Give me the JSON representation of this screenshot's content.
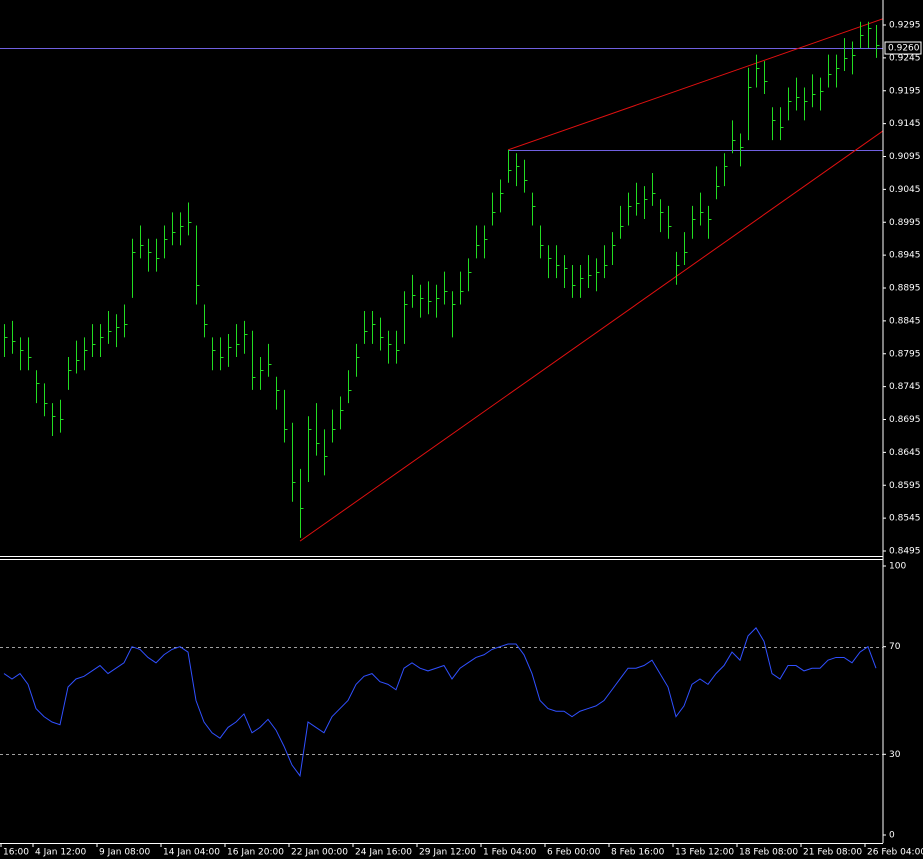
{
  "chart_data": {
    "type": "ohlc",
    "color": "#22dd22",
    "ylim": [
      0.8495,
      0.9295
    ],
    "yticks": [
      0.8495,
      0.8545,
      0.8595,
      0.8645,
      0.8695,
      0.8745,
      0.8795,
      0.8845,
      0.8895,
      0.8945,
      0.8995,
      0.9045,
      0.9095,
      0.9145,
      0.9195,
      0.9245,
      0.9295
    ],
    "high": [
      0.884,
      0.8845,
      0.882,
      0.882,
      0.877,
      0.875,
      0.872,
      0.8725,
      0.879,
      0.8815,
      0.882,
      0.884,
      0.884,
      0.886,
      0.8855,
      0.887,
      0.897,
      0.899,
      0.897,
      0.897,
      0.899,
      0.901,
      0.901,
      0.9025,
      0.899,
      0.887,
      0.882,
      0.882,
      0.8825,
      0.884,
      0.8845,
      0.883,
      0.879,
      0.881,
      0.876,
      0.874,
      0.869,
      0.862,
      0.87,
      0.872,
      0.868,
      0.871,
      0.873,
      0.877,
      0.881,
      0.886,
      0.886,
      0.885,
      0.883,
      0.883,
      0.889,
      0.8915,
      0.89,
      0.8905,
      0.89,
      0.892,
      0.889,
      0.892,
      0.894,
      0.899,
      0.899,
      0.904,
      0.906,
      0.9105,
      0.91,
      0.909,
      0.904,
      0.899,
      0.896,
      0.896,
      0.8945,
      0.893,
      0.893,
      0.8945,
      0.894,
      0.896,
      0.898,
      0.902,
      0.904,
      0.9055,
      0.905,
      0.907,
      0.903,
      0.902,
      0.895,
      0.898,
      0.902,
      0.904,
      0.902,
      0.908,
      0.91,
      0.915,
      0.913,
      0.923,
      0.925,
      0.924,
      0.917,
      0.917,
      0.92,
      0.9215,
      0.92,
      0.922,
      0.9215,
      0.925,
      0.925,
      0.9275,
      0.927,
      0.93,
      0.93,
      0.9295
    ],
    "low": [
      0.879,
      0.8795,
      0.877,
      0.877,
      0.872,
      0.87,
      0.867,
      0.8675,
      0.874,
      0.8765,
      0.877,
      0.879,
      0.879,
      0.881,
      0.8805,
      0.882,
      0.888,
      0.894,
      0.892,
      0.892,
      0.894,
      0.896,
      0.896,
      0.8975,
      0.887,
      0.882,
      0.877,
      0.877,
      0.8775,
      0.879,
      0.8795,
      0.874,
      0.874,
      0.876,
      0.871,
      0.866,
      0.857,
      0.8515,
      0.86,
      0.864,
      0.861,
      0.866,
      0.868,
      0.872,
      0.876,
      0.881,
      0.881,
      0.88,
      0.878,
      0.878,
      0.881,
      0.8865,
      0.885,
      0.8855,
      0.885,
      0.887,
      0.882,
      0.887,
      0.889,
      0.894,
      0.894,
      0.899,
      0.901,
      0.9055,
      0.905,
      0.904,
      0.899,
      0.894,
      0.891,
      0.891,
      0.8895,
      0.888,
      0.888,
      0.8895,
      0.889,
      0.891,
      0.893,
      0.897,
      0.899,
      0.9005,
      0.9,
      0.902,
      0.898,
      0.897,
      0.89,
      0.893,
      0.897,
      0.899,
      0.897,
      0.903,
      0.905,
      0.91,
      0.908,
      0.912,
      0.92,
      0.919,
      0.912,
      0.912,
      0.915,
      0.9165,
      0.915,
      0.917,
      0.9165,
      0.92,
      0.92,
      0.9225,
      0.922,
      0.926,
      0.926,
      0.9245
    ],
    "close": [
      0.882,
      0.8815,
      0.88,
      0.879,
      0.875,
      0.872,
      0.87,
      0.8695,
      0.877,
      0.8785,
      0.88,
      0.881,
      0.882,
      0.883,
      0.8835,
      0.884,
      0.895,
      0.896,
      0.895,
      0.894,
      0.897,
      0.898,
      0.899,
      0.8995,
      0.89,
      0.884,
      0.88,
      0.879,
      0.8805,
      0.881,
      0.8825,
      0.876,
      0.877,
      0.878,
      0.874,
      0.868,
      0.86,
      0.856,
      0.868,
      0.866,
      0.864,
      0.868,
      0.871,
      0.874,
      0.879,
      0.883,
      0.884,
      0.882,
      0.881,
      0.88,
      0.887,
      0.8885,
      0.888,
      0.8875,
      0.888,
      0.889,
      0.887,
      0.889,
      0.892,
      0.896,
      0.897,
      0.901,
      0.904,
      0.9075,
      0.908,
      0.906,
      0.902,
      0.896,
      0.894,
      0.893,
      0.8925,
      0.89,
      0.891,
      0.8915,
      0.892,
      0.893,
      0.896,
      0.899,
      0.902,
      0.9025,
      0.903,
      0.904,
      0.901,
      0.899,
      0.893,
      0.895,
      0.9,
      0.901,
      0.9,
      0.905,
      0.908,
      0.912,
      0.911,
      0.92,
      0.923,
      0.921,
      0.915,
      0.914,
      0.918,
      0.9185,
      0.918,
      0.919,
      0.9195,
      0.922,
      0.923,
      0.9245,
      0.925,
      0.928,
      0.929,
      0.9265
    ],
    "hline_color": "#7060e0",
    "hlines": [
      {
        "value": 0.926,
        "label": "0.9260"
      },
      {
        "value": 0.9105,
        "start": 63
      }
    ],
    "trend_color": "#e01010",
    "trendlines": [
      {
        "x": [
          37,
          110
        ],
        "y": [
          0.851,
          0.9135
        ]
      },
      {
        "x": [
          63,
          110
        ],
        "y": [
          0.9105,
          0.9305
        ]
      }
    ],
    "xticks": [
      {
        "value": -0.375,
        "label": "16:00"
      },
      {
        "value": 3.625,
        "label": "4 Jan 12:00"
      },
      {
        "value": 11.625,
        "label": "9 Jan 08:00"
      },
      {
        "value": 19.625,
        "label": "14 Jan 04:00"
      },
      {
        "value": 27.625,
        "label": "16 Jan 20:00"
      },
      {
        "value": 35.625,
        "label": "22 Jan 00:00"
      },
      {
        "value": 43.625,
        "label": "24 Jan 16:00"
      },
      {
        "value": 51.625,
        "label": "29 Jan 12:00"
      },
      {
        "value": 59.625,
        "label": "1 Feb 04:00"
      },
      {
        "value": 67.625,
        "label": "6 Feb 00:00"
      },
      {
        "value": 75.625,
        "label": "8 Feb 16:00"
      },
      {
        "value": 83.625,
        "label": "13 Feb 12:00"
      },
      {
        "value": 91.625,
        "label": "18 Feb 08:00"
      },
      {
        "value": 99.625,
        "label": "21 Feb 08:00"
      },
      {
        "value": 107.625,
        "label": "26 Feb 04:00"
      }
    ],
    "indicator": {
      "type": "line",
      "color": "#3050ff",
      "ylim": [
        0,
        100
      ],
      "yticks": [
        100,
        70,
        30,
        0
      ],
      "levels": [
        70,
        30
      ],
      "values": [
        60,
        58,
        60,
        56,
        47,
        44,
        42,
        41,
        55,
        58,
        59,
        61,
        63,
        60,
        62,
        64,
        70,
        69,
        66,
        64,
        67,
        69,
        70,
        68,
        50,
        42,
        38,
        36,
        40,
        42,
        45,
        38,
        40,
        43,
        39,
        33,
        26,
        22,
        42,
        40,
        38,
        44,
        47,
        50,
        56,
        59,
        60,
        57,
        56,
        54,
        62,
        64,
        62,
        61,
        62,
        63,
        58,
        62,
        64,
        66,
        67,
        69,
        70,
        71,
        71,
        67,
        60,
        50,
        47,
        46,
        46,
        44,
        46,
        47,
        48,
        50,
        54,
        58,
        62,
        62,
        63,
        65,
        60,
        55,
        44,
        48,
        56,
        58,
        56,
        60,
        63,
        68,
        65,
        74,
        77,
        72,
        60,
        58,
        63,
        63,
        61,
        62,
        62,
        65,
        66,
        66,
        64,
        68,
        70,
        62
      ]
    }
  }
}
